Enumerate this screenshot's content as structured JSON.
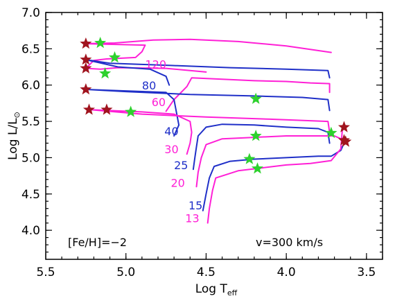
{
  "chart_data": {
    "type": "line",
    "xlabel_main": "Log T",
    "xlabel_sub": "eff",
    "ylabel_main": "Log L/L",
    "ylabel_sub": "⊙",
    "xlim": [
      5.5,
      3.4
    ],
    "ylim": [
      3.6,
      7.0
    ],
    "x_ticks": [
      "5.5",
      "5.0",
      "4.5",
      "4.0",
      "3.5"
    ],
    "x_tick_values": [
      5.5,
      5.0,
      4.5,
      4.0,
      3.5
    ],
    "y_ticks": [
      "4.0",
      "4.5",
      "5.0",
      "5.5",
      "6.0",
      "6.5",
      "7.0"
    ],
    "y_tick_values": [
      4.0,
      4.5,
      5.0,
      5.5,
      6.0,
      6.5,
      7.0
    ],
    "grid": false,
    "annotations": {
      "metallicity": "[Fe/H]=−2",
      "velocity": "v=300 km/s"
    },
    "colors": {
      "magenta": "#ff1fd6",
      "blue": "#1f2fc8",
      "red_star": "#a0141e",
      "green_star": "#2ed12e"
    },
    "tracks": [
      {
        "mass": "120",
        "color": "magenta",
        "label_at": [
          4.88,
          6.23
        ],
        "points": [
          [
            4.5,
            6.18
          ],
          [
            4.75,
            6.23
          ],
          [
            5.05,
            6.24
          ],
          [
            5.16,
            6.22
          ],
          [
            5.25,
            6.23
          ],
          [
            5.2,
            6.34
          ],
          [
            5.12,
            6.36
          ],
          [
            4.94,
            6.38
          ],
          [
            4.9,
            6.46
          ],
          [
            4.88,
            6.55
          ],
          [
            5.25,
            6.57
          ],
          [
            5.07,
            6.58
          ],
          [
            4.83,
            6.62
          ],
          [
            4.6,
            6.63
          ],
          [
            4.3,
            6.6
          ],
          [
            4.0,
            6.54
          ],
          [
            3.72,
            6.45
          ]
        ]
      },
      {
        "mass": "80",
        "color": "blue",
        "label_at": [
          4.9,
          5.94
        ],
        "points": [
          [
            4.73,
            6.0
          ],
          [
            4.75,
            6.12
          ],
          [
            4.85,
            6.22
          ],
          [
            5.05,
            6.25
          ],
          [
            5.15,
            6.3
          ],
          [
            5.25,
            6.35
          ],
          [
            5.1,
            6.3
          ],
          [
            4.72,
            6.27
          ],
          [
            4.35,
            6.24
          ],
          [
            4.0,
            6.22
          ],
          [
            3.74,
            6.2
          ],
          [
            3.73,
            6.1
          ]
        ]
      },
      {
        "mass": "60",
        "color": "magenta",
        "label_at": [
          4.84,
          5.71
        ],
        "points": [
          [
            4.75,
            5.64
          ],
          [
            4.7,
            5.8
          ],
          [
            4.62,
            5.98
          ],
          [
            4.59,
            6.1
          ],
          [
            4.4,
            6.08
          ],
          [
            4.2,
            6.06
          ],
          [
            4.0,
            6.05
          ],
          [
            3.85,
            6.03
          ],
          [
            3.73,
            6.02
          ],
          [
            3.73,
            5.9
          ]
        ]
      },
      {
        "mass": "40",
        "color": "blue",
        "label_at": [
          4.76,
          5.31
        ],
        "points": [
          [
            4.7,
            5.3
          ],
          [
            4.67,
            5.45
          ],
          [
            4.7,
            5.8
          ],
          [
            4.75,
            5.9
          ],
          [
            5.25,
            5.94
          ],
          [
            5.0,
            5.91
          ],
          [
            4.6,
            5.87
          ],
          [
            4.2,
            5.85
          ],
          [
            3.9,
            5.83
          ],
          [
            3.74,
            5.8
          ],
          [
            3.73,
            5.65
          ]
        ]
      },
      {
        "mass": "30",
        "color": "magenta",
        "label_at": [
          4.76,
          5.06
        ],
        "points": [
          [
            4.62,
            5.05
          ],
          [
            4.6,
            5.2
          ],
          [
            4.59,
            5.35
          ],
          [
            4.6,
            5.5
          ],
          [
            4.7,
            5.6
          ],
          [
            4.9,
            5.63
          ],
          [
            5.22,
            5.66
          ],
          [
            4.9,
            5.6
          ],
          [
            4.5,
            5.56
          ],
          [
            4.1,
            5.53
          ],
          [
            3.74,
            5.5
          ],
          [
            3.73,
            5.35
          ]
        ]
      },
      {
        "mass": "25",
        "color": "blue",
        "label_at": [
          4.7,
          4.84
        ],
        "points": [
          [
            4.58,
            4.84
          ],
          [
            4.57,
            5.0
          ],
          [
            4.56,
            5.15
          ],
          [
            4.55,
            5.3
          ],
          [
            4.5,
            5.42
          ],
          [
            4.4,
            5.46
          ],
          [
            4.2,
            5.45
          ],
          [
            4.0,
            5.42
          ],
          [
            3.8,
            5.4
          ],
          [
            3.74,
            5.35
          ],
          [
            3.73,
            5.2
          ]
        ]
      },
      {
        "mass": "20",
        "color": "magenta",
        "label_at": [
          4.72,
          4.6
        ],
        "points": [
          [
            4.56,
            4.6
          ],
          [
            4.55,
            4.8
          ],
          [
            4.53,
            5.0
          ],
          [
            4.5,
            5.18
          ],
          [
            4.4,
            5.26
          ],
          [
            4.2,
            5.28
          ],
          [
            4.0,
            5.3
          ],
          [
            3.8,
            5.3
          ],
          [
            3.7,
            5.3
          ],
          [
            3.65,
            5.25
          ]
        ]
      },
      {
        "mass": "15",
        "color": "blue",
        "label_at": [
          4.61,
          4.29
        ],
        "points": [
          [
            4.52,
            4.27
          ],
          [
            4.5,
            4.5
          ],
          [
            4.48,
            4.72
          ],
          [
            4.45,
            4.88
          ],
          [
            4.35,
            4.95
          ],
          [
            4.2,
            4.98
          ],
          [
            4.0,
            5.0
          ],
          [
            3.8,
            5.02
          ],
          [
            3.72,
            5.02
          ],
          [
            3.66,
            5.1
          ],
          [
            3.64,
            5.2
          ]
        ]
      },
      {
        "mass": "13",
        "color": "magenta",
        "label_at": [
          4.63,
          4.11
        ],
        "points": [
          [
            4.49,
            4.1
          ],
          [
            4.48,
            4.3
          ],
          [
            4.46,
            4.55
          ],
          [
            4.44,
            4.72
          ],
          [
            4.3,
            4.82
          ],
          [
            4.15,
            4.86
          ],
          [
            4.0,
            4.9
          ],
          [
            3.85,
            4.92
          ],
          [
            3.72,
            4.96
          ],
          [
            3.66,
            5.12
          ],
          [
            3.65,
            5.4
          ]
        ]
      }
    ],
    "red_stars": [
      [
        5.25,
        6.57
      ],
      [
        5.25,
        6.35
      ],
      [
        5.25,
        6.23
      ],
      [
        5.25,
        5.94
      ],
      [
        5.23,
        5.66
      ],
      [
        5.12,
        5.66
      ],
      [
        3.64,
        5.42
      ],
      [
        3.64,
        5.24
      ],
      [
        3.63,
        5.22
      ]
    ],
    "green_stars": [
      [
        5.16,
        6.58
      ],
      [
        5.07,
        6.38
      ],
      [
        5.13,
        6.16
      ],
      [
        4.97,
        5.63
      ],
      [
        4.19,
        5.81
      ],
      [
        4.19,
        5.3
      ],
      [
        4.23,
        4.98
      ],
      [
        4.18,
        4.85
      ],
      [
        3.72,
        5.34
      ]
    ]
  }
}
